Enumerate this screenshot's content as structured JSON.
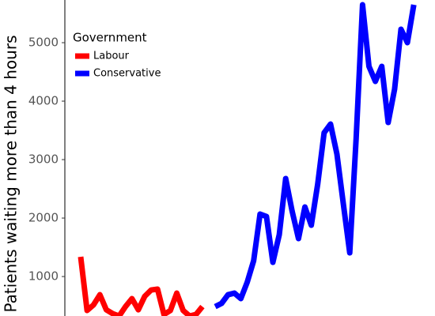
{
  "chart_data": {
    "type": "line",
    "y_label": "Patients waiting more than 4 hours",
    "legend_title": "Government",
    "categories": [
      null,
      null,
      null,
      null,
      null,
      null,
      null,
      null,
      null,
      null,
      null,
      null,
      null,
      null,
      null,
      null,
      null,
      null,
      null,
      null,
      null,
      null,
      null,
      null,
      null,
      null,
      null,
      null,
      null,
      null,
      null,
      null,
      null,
      null,
      null,
      null,
      null,
      null,
      null,
      null,
      null,
      null,
      null,
      null,
      null,
      null,
      null,
      null,
      null,
      null,
      null,
      null,
      null
    ],
    "series": [
      {
        "name": "Labour",
        "color": "#ff0000",
        "values": [
          1338,
          419,
          514,
          689,
          432,
          365,
          324,
          486,
          622,
          432,
          662,
          770,
          784,
          351,
          419,
          716,
          419,
          324,
          351,
          486,
          null,
          null,
          null,
          null,
          null,
          null,
          null,
          null,
          null,
          null,
          null,
          null,
          null,
          null,
          null,
          null,
          null,
          null,
          null,
          null,
          null,
          null,
          null,
          null,
          null,
          null,
          null,
          null,
          null,
          null,
          null,
          null,
          null
        ]
      },
      {
        "name": "Conservative",
        "color": "#0000ff",
        "values": [
          null,
          null,
          null,
          null,
          null,
          null,
          null,
          null,
          null,
          null,
          null,
          null,
          null,
          null,
          null,
          null,
          null,
          null,
          null,
          null,
          null,
          486,
          541,
          689,
          716,
          622,
          905,
          1270,
          2068,
          2027,
          1243,
          1716,
          2676,
          2122,
          1649,
          2189,
          1878,
          2581,
          3459,
          3608,
          3095,
          2243,
          1405,
          3365,
          5649,
          4595,
          4338,
          4595,
          3635,
          4203,
          5230,
          5000,
          5649
        ]
      }
    ],
    "ylim": [
      325,
      5730
    ],
    "yticks": [
      1000,
      2000,
      3000,
      4000,
      5000
    ],
    "grid": false
  }
}
